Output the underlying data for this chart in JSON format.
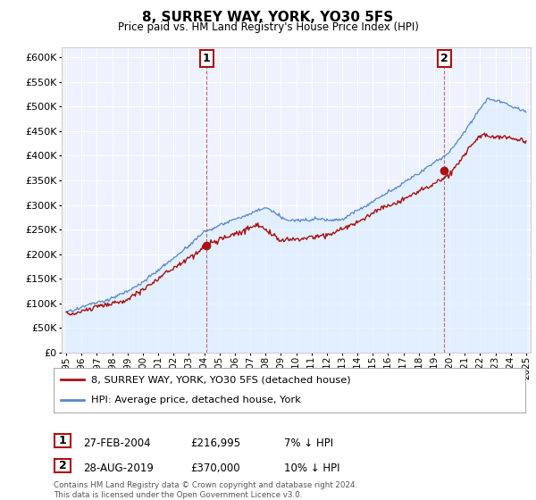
{
  "title": "8, SURREY WAY, YORK, YO30 5FS",
  "subtitle": "Price paid vs. HM Land Registry's House Price Index (HPI)",
  "ylim": [
    0,
    620000
  ],
  "yticks": [
    0,
    50000,
    100000,
    150000,
    200000,
    250000,
    300000,
    350000,
    400000,
    450000,
    500000,
    550000,
    600000
  ],
  "xlim_start": 1994.7,
  "xlim_end": 2025.3,
  "xticks": [
    1995,
    1996,
    1997,
    1998,
    1999,
    2000,
    2001,
    2002,
    2003,
    2004,
    2005,
    2006,
    2007,
    2008,
    2009,
    2010,
    2011,
    2012,
    2013,
    2014,
    2015,
    2016,
    2017,
    2018,
    2019,
    2020,
    2021,
    2022,
    2023,
    2024,
    2025
  ],
  "hpi_color": "#5588cc",
  "hpi_fill_color": "#ddeeff",
  "price_color": "#aa1111",
  "marker1_x": 2004.15,
  "marker1_y": 216995,
  "marker2_x": 2019.65,
  "marker2_y": 370000,
  "legend_entry1": "8, SURREY WAY, YORK, YO30 5FS (detached house)",
  "legend_entry2": "HPI: Average price, detached house, York",
  "table_row1": [
    "1",
    "27-FEB-2004",
    "£216,995",
    "7% ↓ HPI"
  ],
  "table_row2": [
    "2",
    "28-AUG-2019",
    "£370,000",
    "10% ↓ HPI"
  ],
  "footnote": "Contains HM Land Registry data © Crown copyright and database right 2024.\nThis data is licensed under the Open Government Licence v3.0.",
  "background_color": "#ffffff",
  "plot_bg_color": "#eef2ff"
}
